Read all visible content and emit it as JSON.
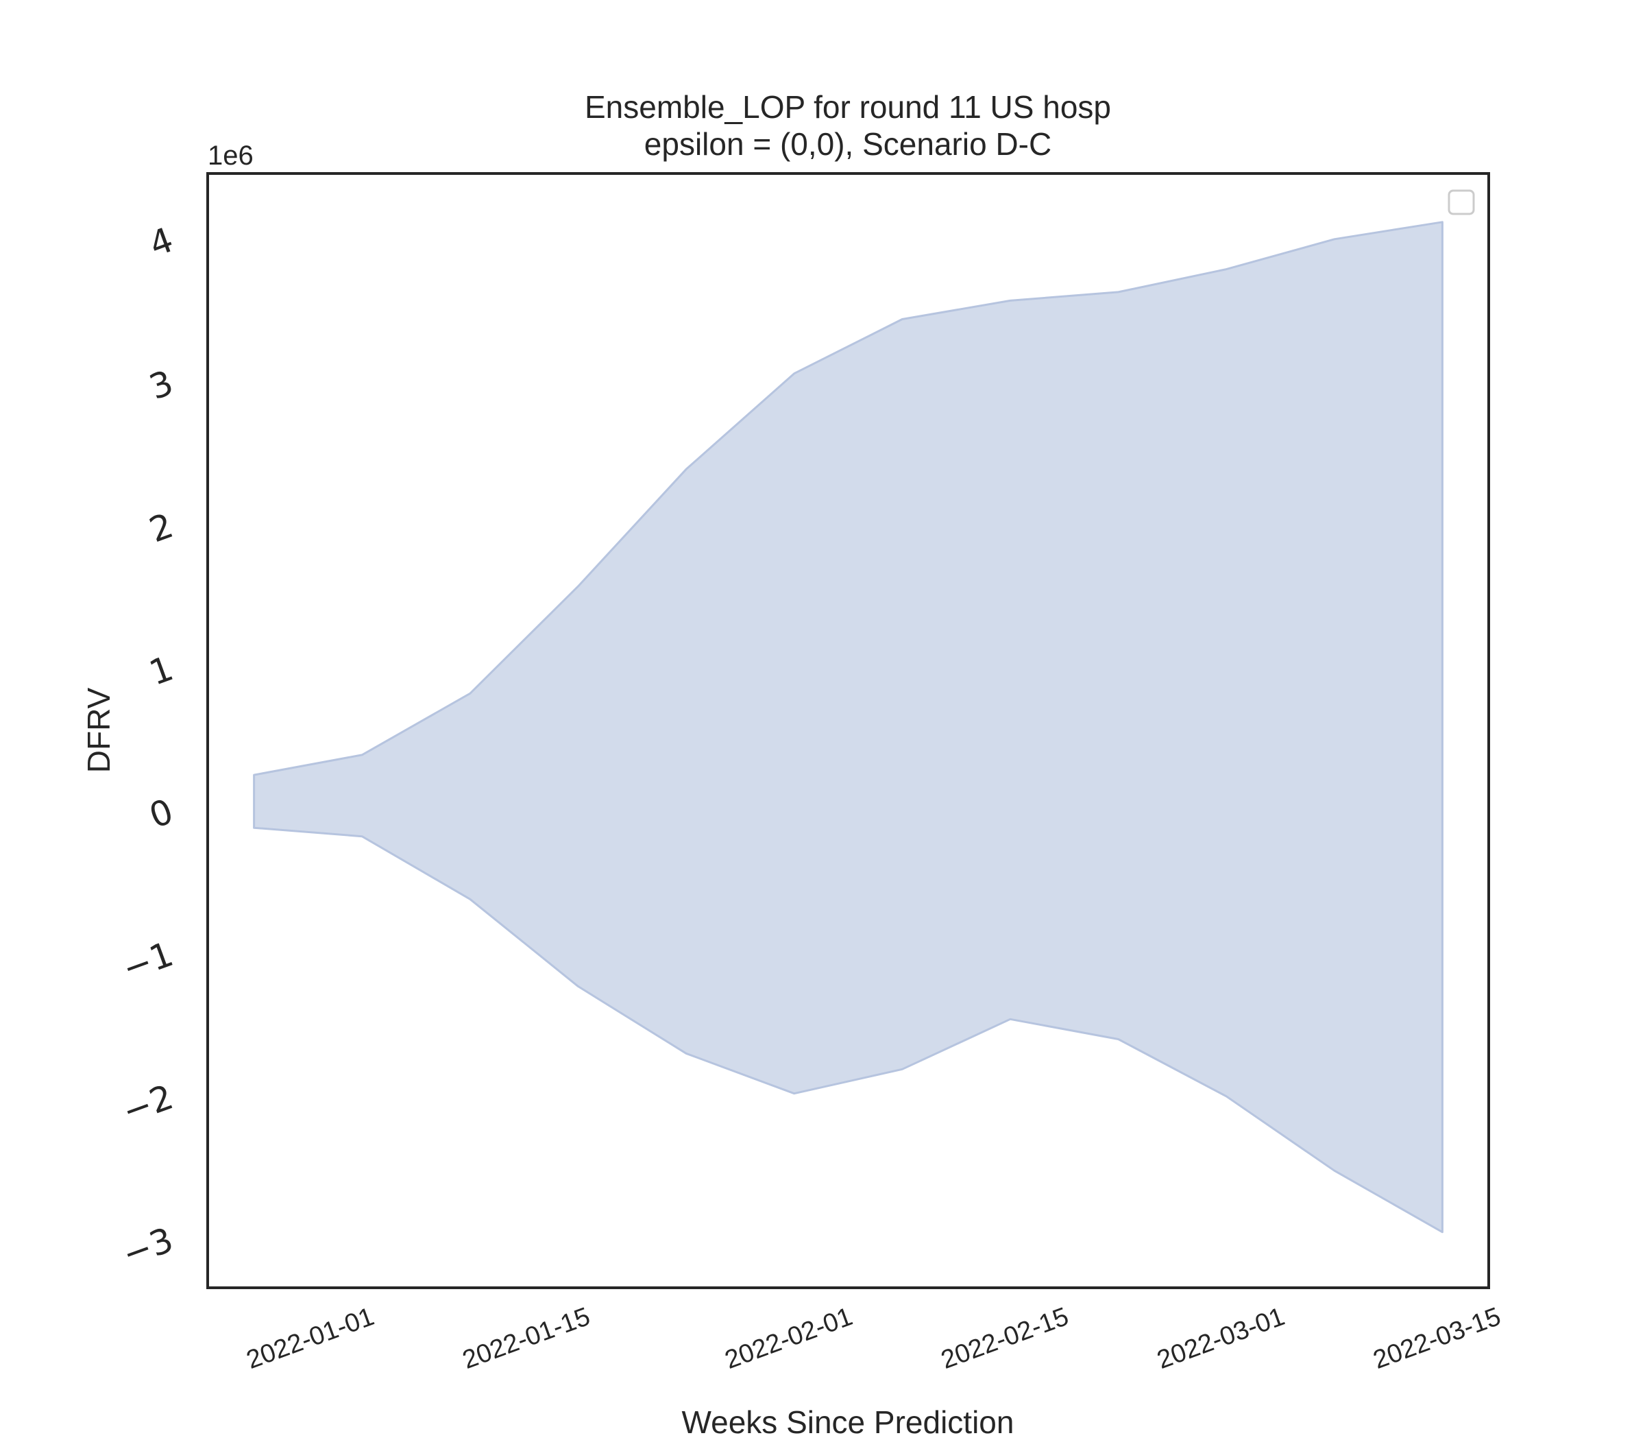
{
  "chart_data": {
    "type": "area",
    "title_line1": "Ensemble_LOP for round 11 US hosp",
    "title_line2": "epsilon = (0,0), Scenario D-C",
    "xlabel": "Weeks Since Prediction",
    "ylabel": "DFRV",
    "y_offset_label": "1e6",
    "x": [
      "2021-12-25",
      "2022-01-01",
      "2022-01-08",
      "2022-01-15",
      "2022-01-22",
      "2022-01-29",
      "2022-02-05",
      "2022-02-12",
      "2022-02-19",
      "2022-02-26",
      "2022-03-05",
      "2022-03-12"
    ],
    "upper": [
      0.24,
      0.38,
      0.81,
      1.56,
      2.38,
      3.05,
      3.43,
      3.56,
      3.62,
      3.78,
      3.99,
      4.11
    ],
    "lower": [
      -0.13,
      -0.19,
      -0.63,
      -1.24,
      -1.71,
      -1.99,
      -1.82,
      -1.47,
      -1.61,
      -2.01,
      -2.53,
      -2.96
    ],
    "x_ticks": [
      "2022-01-01",
      "2022-01-15",
      "2022-02-01",
      "2022-02-15",
      "2022-03-01",
      "2022-03-15"
    ],
    "y_ticks": [
      -3,
      -2,
      -1,
      0,
      1,
      2,
      3,
      4
    ],
    "xlim": [
      "2021-12-22",
      "2022-03-15"
    ],
    "ylim": [
      -3.35,
      4.45
    ],
    "fill_color": "#d2dbeb",
    "edge_color": "#b6c4df",
    "grid": false,
    "legend": "top-right (empty)"
  }
}
